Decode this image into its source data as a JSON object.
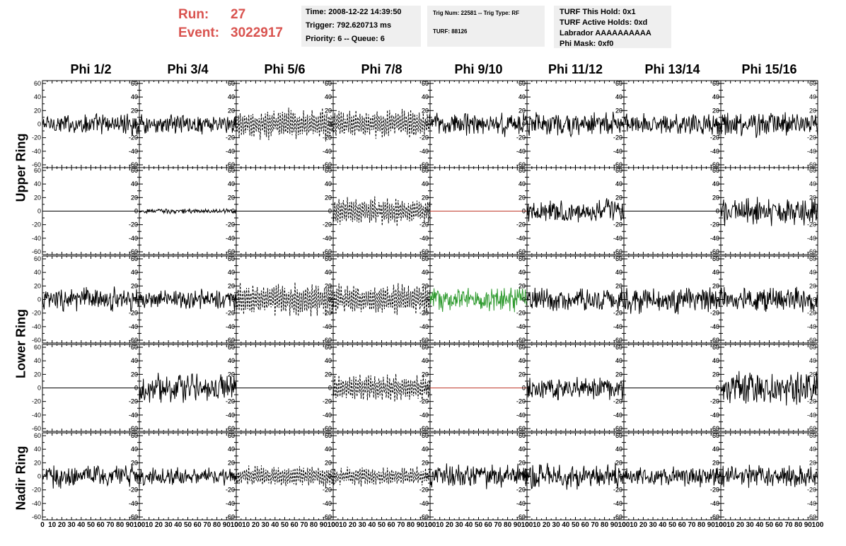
{
  "run_info": {
    "run_label": "Run:",
    "run_value": "27",
    "event_label": "Event:",
    "event_value": "3022917"
  },
  "info_box_1": [
    "Time: 2008-12-22 14:39:50",
    "Trigger: 792.620713 ms",
    "Priority: 6 -- Queue: 6"
  ],
  "info_box_2": [
    "Trig Num: 22581 -- Trig Type: RF",
    "TURF: 88126"
  ],
  "info_box_3": [
    "TURF This Hold: 0x1",
    "TURF Active Holds: 0xd",
    "Labrador AAAAAAAAAA",
    "Phi Mask: 0xf0"
  ],
  "chart_data": {
    "type": "line",
    "columns": [
      "Phi 1/2",
      "Phi 3/4",
      "Phi 5/6",
      "Phi 7/8",
      "Phi 9/10",
      "Phi 11/12",
      "Phi 13/14",
      "Phi 15/16"
    ],
    "rows": [
      "Upper Ring",
      "Lower Ring",
      "Nadir Ring"
    ],
    "xlim": [
      0,
      100
    ],
    "ylim": [
      -60,
      60
    ],
    "x_tick_labels": [
      "0",
      "10",
      "20",
      "30",
      "40",
      "50",
      "60",
      "70",
      "80",
      "90",
      "100"
    ],
    "y_tick_labels": [
      "-60",
      "-40",
      "-20",
      "0",
      "20",
      "40",
      "60"
    ],
    "colors": {
      "normal": "#000000",
      "flat": "#000000",
      "masked": "#c0392b",
      "trigger": "#2e9a2e"
    },
    "panel_rows": [
      {
        "ring": "Upper Ring",
        "traces": [
          {
            "style": "solid",
            "amp": 13,
            "color": "normal"
          },
          {
            "style": "solid",
            "amp": 12,
            "color": "normal"
          },
          {
            "style": "dashed",
            "amp": 20,
            "color": "normal"
          },
          {
            "style": "dashed",
            "amp": 18,
            "color": "normal"
          },
          {
            "style": "solid",
            "amp": 14,
            "color": "normal"
          },
          {
            "style": "solid",
            "amp": 15,
            "color": "normal"
          },
          {
            "style": "solid",
            "amp": 14,
            "color": "normal"
          },
          {
            "style": "solid",
            "amp": 16,
            "color": "normal"
          }
        ]
      },
      {
        "ring": "Upper Ring",
        "traces": [
          {
            "style": "flat",
            "amp": 0,
            "color": "flat"
          },
          {
            "style": "solid",
            "amp": 3,
            "color": "normal"
          },
          {
            "style": "flat",
            "amp": 0,
            "color": "flat"
          },
          {
            "style": "dashed",
            "amp": 18,
            "color": "normal"
          },
          {
            "style": "flat",
            "amp": 0,
            "color": "masked"
          },
          {
            "style": "solid",
            "amp": 14,
            "color": "normal"
          },
          {
            "style": "flat",
            "amp": 0,
            "color": "flat"
          },
          {
            "style": "solid",
            "amp": 17,
            "color": "normal"
          }
        ]
      },
      {
        "ring": "Lower Ring",
        "traces": [
          {
            "style": "solid",
            "amp": 15,
            "color": "normal"
          },
          {
            "style": "solid",
            "amp": 13,
            "color": "normal"
          },
          {
            "style": "dashed",
            "amp": 22,
            "color": "normal"
          },
          {
            "style": "dashed",
            "amp": 20,
            "color": "normal"
          },
          {
            "style": "solid",
            "amp": 15,
            "color": "trigger"
          },
          {
            "style": "solid",
            "amp": 15,
            "color": "normal"
          },
          {
            "style": "solid",
            "amp": 16,
            "color": "normal"
          },
          {
            "style": "solid",
            "amp": 15,
            "color": "normal"
          }
        ]
      },
      {
        "ring": "Lower Ring",
        "traces": [
          {
            "style": "flat",
            "amp": 0,
            "color": "flat"
          },
          {
            "style": "solid",
            "amp": 17,
            "color": "normal"
          },
          {
            "style": "flat",
            "amp": 0,
            "color": "flat"
          },
          {
            "style": "dashed",
            "amp": 17,
            "color": "normal"
          },
          {
            "style": "flat",
            "amp": 0,
            "color": "masked"
          },
          {
            "style": "solid",
            "amp": 14,
            "color": "normal"
          },
          {
            "style": "flat",
            "amp": 0,
            "color": "flat"
          },
          {
            "style": "solid",
            "amp": 20,
            "color": "normal"
          }
        ]
      },
      {
        "ring": "Nadir Ring",
        "traces": [
          {
            "style": "solid",
            "amp": 14,
            "color": "normal"
          },
          {
            "style": "solid",
            "amp": 10,
            "color": "normal"
          },
          {
            "style": "dashed",
            "amp": 14,
            "color": "normal"
          },
          {
            "style": "dashed",
            "amp": 12,
            "color": "normal"
          },
          {
            "style": "solid",
            "amp": 15,
            "color": "normal"
          },
          {
            "style": "solid",
            "amp": 16,
            "color": "normal"
          },
          {
            "style": "solid",
            "amp": 12,
            "color": "normal"
          },
          {
            "style": "solid",
            "amp": 13,
            "color": "normal"
          }
        ]
      }
    ]
  }
}
